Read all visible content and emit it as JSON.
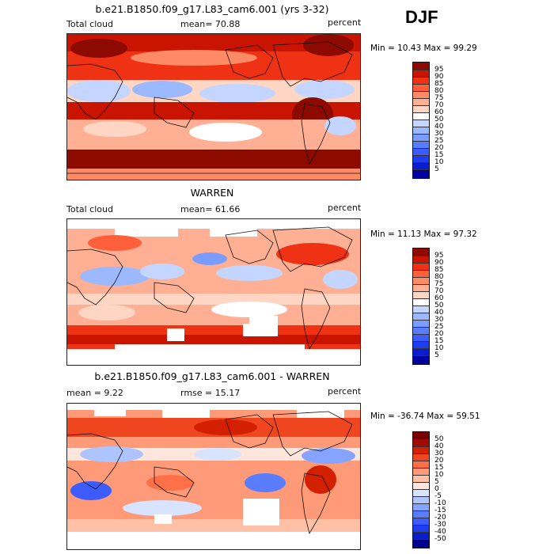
{
  "season": "DJF",
  "panels": [
    {
      "title": "b.e21.B1850.f09_g17.L83_cam6.001 (yrs 3-32)",
      "left_label": "Total cloud",
      "center_label": "mean=   70.88",
      "right_label": "percent",
      "range_text": "Min =   10.43 Max =   99.29"
    },
    {
      "title": "WARREN",
      "left_label": "Total cloud",
      "center_label": "mean=   61.66",
      "right_label": "percent",
      "range_text": "Min =   11.13 Max =   97.32"
    },
    {
      "title": "b.e21.B1850.f09_g17.L83_cam6.001 - WARREN",
      "left_label": "mean =    9.22",
      "center_label": "rmse =   15.17",
      "right_label": "percent",
      "range_text": "Min = -36.74 Max =   59.51"
    }
  ],
  "chart_data": [
    {
      "type": "heatmap",
      "title": "b.e21.B1850.f09_g17.L83_cam6.001 (yrs 3-32)",
      "variable": "Total cloud",
      "units": "percent",
      "mean": 70.88,
      "min": 10.43,
      "max": 99.29,
      "contour_levels": [
        5,
        10,
        15,
        20,
        25,
        30,
        40,
        50,
        60,
        70,
        75,
        80,
        85,
        90,
        95
      ],
      "colors": [
        "#0000a0",
        "#0a1ed0",
        "#1e3cf0",
        "#3c5cff",
        "#5a7cff",
        "#7a9cff",
        "#9cb8ff",
        "#c4d6ff",
        "#ffffff",
        "#ffd6c4",
        "#ffb094",
        "#ff8a66",
        "#ff5f3a",
        "#f03214",
        "#c81400",
        "#8c0a00"
      ]
    },
    {
      "type": "heatmap",
      "title": "WARREN",
      "variable": "Total cloud",
      "units": "percent",
      "mean": 61.66,
      "min": 11.13,
      "max": 97.32,
      "contour_levels": [
        5,
        10,
        15,
        20,
        25,
        30,
        40,
        50,
        60,
        70,
        75,
        80,
        85,
        90,
        95
      ],
      "colors": [
        "#0000a0",
        "#0a1ed0",
        "#1e3cf0",
        "#3c5cff",
        "#5a7cff",
        "#7a9cff",
        "#9cb8ff",
        "#c4d6ff",
        "#ffffff",
        "#ffd6c4",
        "#ffb094",
        "#ff8a66",
        "#ff5f3a",
        "#f03214",
        "#c81400",
        "#8c0a00"
      ]
    },
    {
      "type": "heatmap",
      "title": "b.e21.B1850.f09_g17.L83_cam6.001 - WARREN",
      "units": "percent",
      "mean": 9.22,
      "rmse": 15.17,
      "min": -36.74,
      "max": 59.51,
      "contour_levels": [
        -50,
        -40,
        -30,
        -20,
        -15,
        -10,
        -5,
        0,
        5,
        10,
        15,
        20,
        30,
        40,
        50
      ],
      "colors": [
        "#00008c",
        "#0a1ec8",
        "#1e3cf0",
        "#3c5cff",
        "#5a7cff",
        "#84a4ff",
        "#aec4ff",
        "#d8e4ff",
        "#ffe6dc",
        "#ffc0a6",
        "#ff9a78",
        "#ff7048",
        "#f04620",
        "#d22000",
        "#a00a00",
        "#780000"
      ]
    }
  ]
}
